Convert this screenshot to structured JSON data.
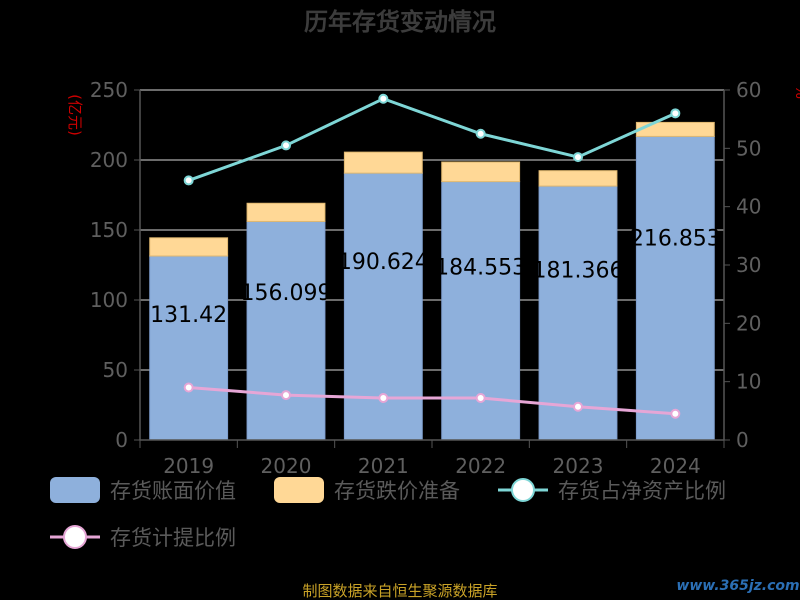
{
  "chart_data": {
    "type": "bar",
    "title": "历年存货变动情况",
    "categories": [
      "2019",
      "2020",
      "2021",
      "2022",
      "2023",
      "2024"
    ],
    "ylabel_left": "(亿元)",
    "ylabel_right": "%",
    "ylim_left": [
      0,
      250
    ],
    "ylim_right": [
      0,
      60
    ],
    "yticks_left": [
      "0",
      "50",
      "100",
      "150",
      "200",
      "250"
    ],
    "yticks_right": [
      "0",
      "10",
      "20",
      "30",
      "40",
      "50",
      "60"
    ],
    "stacked": true,
    "series": [
      {
        "name": "存货账面价值",
        "kind": "bar",
        "axis": "left",
        "color": "#8eb0dc",
        "values": [
          131.42,
          156.099,
          190.624,
          184.553,
          181.366,
          216.853
        ],
        "labels": [
          "131.42",
          "156.099",
          "190.624",
          "184.553",
          "181.366",
          "216.853"
        ]
      },
      {
        "name": "存货跌价准备",
        "kind": "bar",
        "axis": "left",
        "color": "#ffd896",
        "values": [
          13,
          13,
          15,
          14,
          11,
          10
        ]
      },
      {
        "name": "存货占净资产比例",
        "kind": "line",
        "axis": "right",
        "color": "#7ed6d6",
        "values": [
          44.5,
          50.5,
          58.5,
          52.5,
          48.5,
          56.0
        ]
      },
      {
        "name": "存货计提比例",
        "kind": "line",
        "axis": "right",
        "color": "#e6a6d6",
        "values": [
          9.0,
          7.7,
          7.2,
          7.2,
          5.7,
          4.5
        ]
      }
    ],
    "legend_position": "bottom",
    "grid": true
  },
  "footer": {
    "source": "制图数据来自恒生聚源数据库",
    "watermark": "www.365jz.com"
  }
}
